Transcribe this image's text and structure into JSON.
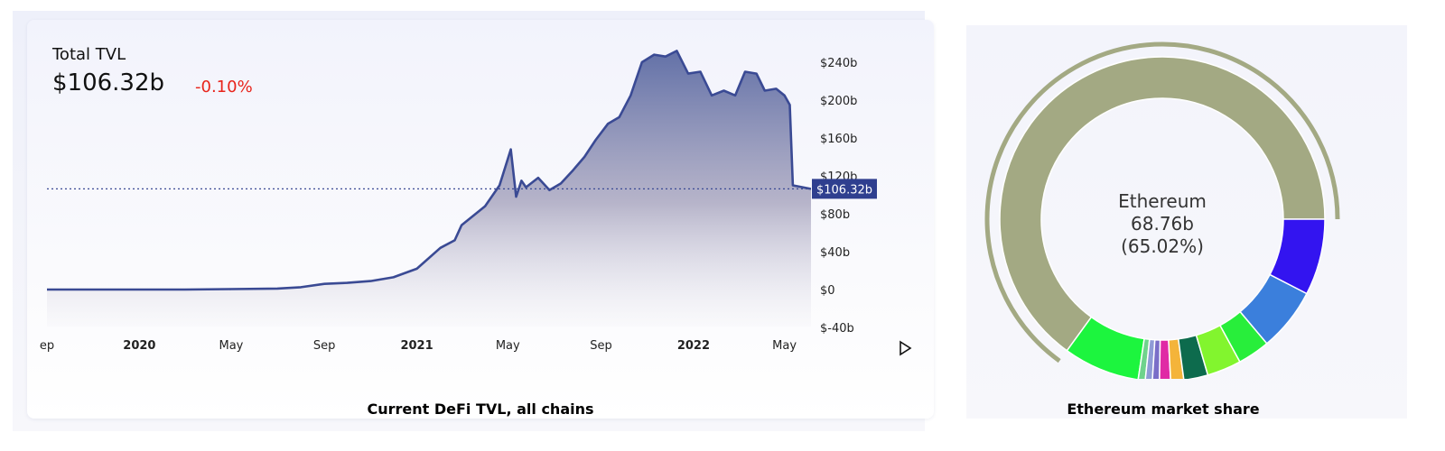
{
  "tvl_card": {
    "label": "Total TVL",
    "value": "$106.32b",
    "change": "-0.10%",
    "current_tag": "$106.32b",
    "caption": "Current DeFi TVL, all chains"
  },
  "share_card": {
    "center_name": "Ethereum",
    "center_value": "68.76b",
    "center_percent": "(65.02%)",
    "caption": "Ethereum market share"
  },
  "chart_data": [
    {
      "type": "area",
      "series": [
        {
          "x": [
            "2019-09",
            "2019-11",
            "2020-01",
            "2020-03",
            "2020-05",
            "2020-07",
            "2020-08",
            "2020-09",
            "2020-10",
            "2020-11",
            "2020-12",
            "2021-01",
            "2021-02",
            "2021-02-20",
            "2021-03",
            "2021-04",
            "2021-04-20",
            "2021-05-05",
            "2021-05-12",
            "2021-05-19",
            "2021-05-25",
            "2021-06-10",
            "2021-06-25",
            "2021-07-10",
            "2021-07-25",
            "2021-08-10",
            "2021-08-25",
            "2021-09-10",
            "2021-09-25",
            "2021-10-10",
            "2021-10-25",
            "2021-11-10",
            "2021-11-25",
            "2021-12-10",
            "2021-12-25",
            "2022-01-10",
            "2022-01-25",
            "2022-02-10",
            "2022-02-25",
            "2022-03-10",
            "2022-03-25",
            "2022-04-05",
            "2022-04-20",
            "2022-05-01",
            "2022-05-08",
            "2022-05-12",
            "2022-05-25",
            "2022-06-05"
          ],
          "values": [
            0,
            0,
            0,
            0,
            0.5,
            1,
            2.5,
            6,
            7,
            9,
            13,
            22,
            44,
            52,
            68,
            88,
            110,
            148,
            98,
            115,
            108,
            118,
            105,
            112,
            125,
            140,
            158,
            175,
            182,
            205,
            240,
            248,
            246,
            252,
            228,
            230,
            205,
            210,
            205,
            230,
            228,
            210,
            212,
            205,
            195,
            110,
            108,
            106.32
          ]
        }
      ],
      "y_ticks": [
        "$240b",
        "$200b",
        "$160b",
        "$120b",
        "$80b",
        "$40b",
        "$0",
        "$-40b"
      ],
      "ylim": [
        -40,
        255
      ],
      "x_ticks": [
        "ep",
        "2020",
        "May",
        "Sep",
        "2021",
        "May",
        "Sep",
        "2022",
        "May"
      ],
      "x_ticks_bold": [
        "2020",
        "2021",
        "2022"
      ],
      "current_value": 106.32,
      "grid": false,
      "line_color": "#3a4a94"
    },
    {
      "type": "pie",
      "slices": [
        {
          "value": 65.02,
          "color": "#a3a983"
        },
        {
          "value": 7.6,
          "color": "#1cf53e"
        },
        {
          "value": 0.7,
          "color": "#6fd38c"
        },
        {
          "value": 0.7,
          "color": "#8f9bd6"
        },
        {
          "value": 0.7,
          "color": "#7a6ec8"
        },
        {
          "value": 1.1,
          "color": "#e02aa5"
        },
        {
          "value": 1.3,
          "color": "#f4b43a"
        },
        {
          "value": 2.4,
          "color": "#0d6b4d"
        },
        {
          "value": 3.4,
          "color": "#82f52e"
        },
        {
          "value": 3.2,
          "color": "#28ee3b"
        },
        {
          "value": 6.3,
          "color": "#3b7fdc"
        },
        {
          "value": 7.58,
          "color": "#3314f0"
        }
      ],
      "highlight": 0
    }
  ]
}
